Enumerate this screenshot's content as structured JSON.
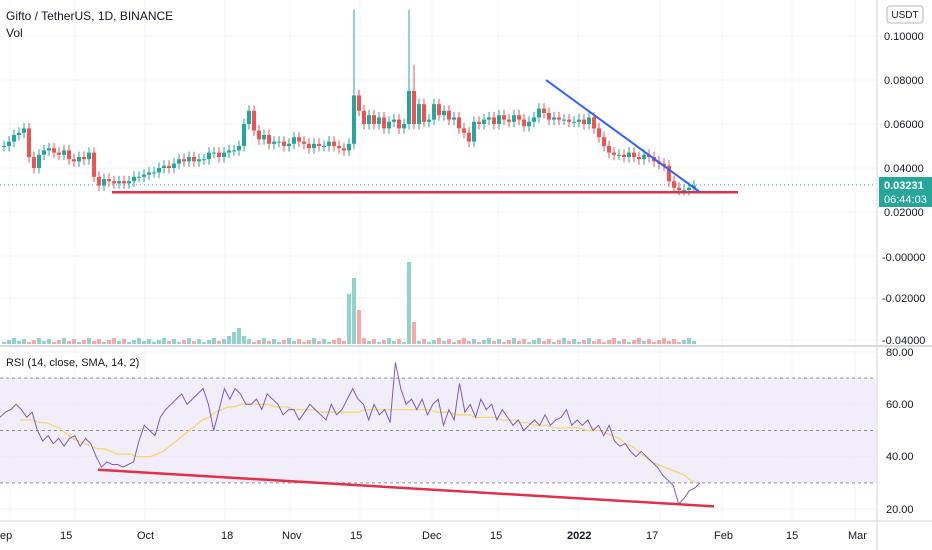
{
  "header": {
    "title": "Gifto / TetherUS, 1D, BINANCE",
    "vol_label": "Vol",
    "currency_button": "USDT"
  },
  "price_axis": {
    "ticks": [
      "0.10000",
      "0.08000",
      "0.06000",
      "0.04000",
      "0.02000"
    ],
    "last_price": "0.03231",
    "countdown": "06:44:03"
  },
  "volume_axis": {
    "ticks": [
      "-0.00000",
      "-0.02000",
      "-0.04000"
    ]
  },
  "rsi_panel": {
    "legend": "RSI (14, close, SMA, 14, 2)",
    "ticks": [
      "80.00",
      "60.00",
      "40.00",
      "20.00"
    ],
    "band_upper": 70,
    "band_middle": 50,
    "band_lower": 30
  },
  "time_axis": {
    "labels": [
      "ep",
      "15",
      "Oct",
      "18",
      "Nov",
      "15",
      "Dec",
      "15",
      "2022",
      "17",
      "Feb",
      "15",
      "Mar"
    ]
  },
  "colors": {
    "up": "#26a69a",
    "down": "#ef5350",
    "rsi_line": "#7e57c2",
    "rsi_ma": "#f5d76e",
    "support_line": "#e0304a",
    "resistance_line": "#2962ff",
    "rsi_band": "#ede7f6",
    "last_price_bg": "#26a69a"
  },
  "chart_data": [
    {
      "type": "candlestick",
      "pair": "Gifto / TetherUS",
      "timeframe": "1D",
      "exchange": "BINANCE",
      "quote": "USDT",
      "y_range": [
        0.015,
        0.112
      ],
      "y_ticks": [
        0.1,
        0.08,
        0.06,
        0.04,
        0.02
      ],
      "last_price": 0.03231,
      "approx_close": [
        0.05,
        0.052,
        0.055,
        0.056,
        0.058,
        0.045,
        0.04,
        0.046,
        0.048,
        0.049,
        0.047,
        0.046,
        0.048,
        0.044,
        0.043,
        0.045,
        0.044,
        0.047,
        0.036,
        0.032,
        0.035,
        0.034,
        0.033,
        0.034,
        0.033,
        0.034,
        0.036,
        0.036,
        0.037,
        0.038,
        0.038,
        0.04,
        0.041,
        0.04,
        0.042,
        0.044,
        0.043,
        0.045,
        0.043,
        0.044,
        0.044,
        0.047,
        0.047,
        0.045,
        0.047,
        0.048,
        0.048,
        0.05,
        0.06,
        0.066,
        0.057,
        0.053,
        0.055,
        0.051,
        0.052,
        0.052,
        0.05,
        0.051,
        0.054,
        0.052,
        0.051,
        0.049,
        0.051,
        0.05,
        0.05,
        0.052,
        0.05,
        0.049,
        0.048,
        0.051,
        0.073,
        0.066,
        0.06,
        0.064,
        0.06,
        0.063,
        0.058,
        0.061,
        0.062,
        0.058,
        0.06,
        0.075,
        0.06,
        0.069,
        0.061,
        0.062,
        0.069,
        0.064,
        0.066,
        0.062,
        0.063,
        0.058,
        0.056,
        0.052,
        0.061,
        0.06,
        0.062,
        0.063,
        0.06,
        0.064,
        0.062,
        0.061,
        0.064,
        0.062,
        0.059,
        0.061,
        0.063,
        0.067,
        0.065,
        0.062,
        0.063,
        0.062,
        0.062,
        0.061,
        0.061,
        0.062,
        0.06,
        0.063,
        0.058,
        0.054,
        0.05,
        0.047,
        0.046,
        0.046,
        0.045,
        0.047,
        0.045,
        0.044,
        0.046,
        0.045,
        0.043,
        0.042,
        0.041,
        0.034,
        0.031,
        0.03,
        0.03,
        0.031,
        0.032
      ],
      "annotations": [
        {
          "kind": "support",
          "price": 0.029,
          "color": "red"
        },
        {
          "kind": "descending_resistance",
          "from_price": 0.08,
          "to_price": 0.029,
          "color": "blue"
        }
      ]
    },
    {
      "type": "bar",
      "panel": "Vol",
      "y_ticks": [
        -0.0,
        -0.02,
        -0.04
      ],
      "note": "two large spikes near the mid-November and early-December pumps"
    },
    {
      "type": "line",
      "panel": "RSI (14, close, SMA, 14, 2)",
      "y_range": [
        17,
        82
      ],
      "y_ticks": [
        80,
        60,
        40,
        20
      ],
      "bands": [
        70,
        50,
        30
      ],
      "series": [
        {
          "name": "RSI",
          "values": [
            55,
            57,
            58,
            60,
            58,
            55,
            57,
            50,
            46,
            48,
            45,
            47,
            44,
            47,
            48,
            44,
            47,
            45,
            40,
            36,
            38,
            37,
            37,
            36,
            37,
            38,
            46,
            52,
            50,
            48,
            55,
            58,
            60,
            62,
            64,
            60,
            62,
            64,
            66,
            60,
            50,
            58,
            66,
            62,
            66,
            64,
            60,
            60,
            62,
            58,
            64,
            62,
            60,
            56,
            58,
            58,
            54,
            57,
            60,
            58,
            56,
            54,
            60,
            56,
            58,
            62,
            66,
            62,
            60,
            54,
            60,
            56,
            58,
            53,
            76,
            66,
            60,
            62,
            58,
            62,
            56,
            60,
            62,
            52,
            58,
            54,
            68,
            57,
            60,
            55,
            62,
            58,
            60,
            54,
            58,
            55,
            52,
            54,
            50,
            52,
            54,
            52,
            56,
            52,
            54,
            55,
            58,
            52,
            54,
            52,
            54,
            50,
            52,
            48,
            52,
            46,
            44,
            45,
            42,
            40,
            42,
            40,
            38,
            36,
            33,
            31,
            29,
            22,
            24,
            27,
            28,
            30
          ]
        },
        {
          "name": "RSI-based MA",
          "values": [
            54,
            54,
            54,
            53,
            53,
            52,
            51,
            49,
            47,
            46,
            45,
            44,
            43,
            43,
            42,
            41,
            41,
            41,
            40,
            40,
            40,
            41,
            42,
            44,
            46,
            48,
            50,
            52,
            54,
            55,
            57,
            58,
            59,
            59,
            60,
            60,
            60,
            60,
            60,
            59,
            59,
            59,
            58,
            58,
            58,
            58,
            57,
            57,
            57,
            57,
            57,
            57,
            57,
            58,
            58,
            58,
            58,
            58,
            58,
            58,
            58,
            58,
            58,
            58,
            57,
            57,
            57,
            56,
            56,
            56,
            55,
            55,
            55,
            55,
            54,
            54,
            54,
            53,
            53,
            52,
            52,
            52,
            51,
            51,
            51,
            51,
            51,
            50,
            50,
            50,
            49,
            48,
            47,
            45,
            44,
            42,
            40,
            38,
            37,
            36,
            35,
            34,
            33,
            31,
            30
          ]
        }
      ],
      "annotations": [
        {
          "kind": "descending_support",
          "from_value": 35,
          "to_value": 21,
          "color": "red"
        }
      ]
    }
  ]
}
